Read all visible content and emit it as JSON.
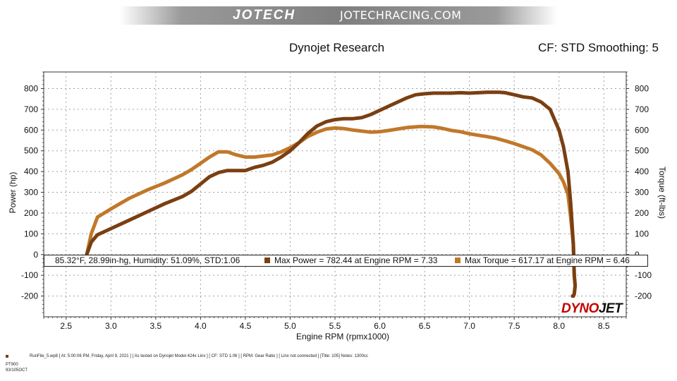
{
  "header": {
    "logo_text": "JOTECH",
    "site_text": "JOTECHRACING.COM",
    "title_left": "Dynojet Research",
    "title_right": "CF: STD Smoothing: 5"
  },
  "legend": {
    "conditions": "85.32°F, 28.99in-hg, Humidity: 51.09%, STD:1.06",
    "max_power": "Max Power = 782.44 at Engine RPM = 7.33",
    "max_torque": "Max Torque = 617.17 at Engine RPM = 6.46"
  },
  "footer": {
    "line1": "RunFile_5.wp8 [ At: 5:00:06 PM, Friday, April 9, 2021 ] [ As tested on Dynojet Model 424x Linx ] [ CF: STD 1.06 ] [ RPM: Gear Ratio ] [ Linx not connected ] [Title: 105]   Notes: 1300cc",
    "line2": "PT900",
    "line3": "93/105OCT"
  },
  "brand": {
    "part1": "DYNO",
    "part2": "JET"
  },
  "colors": {
    "power": "#7a3f12",
    "torque": "#c0782a",
    "grid": "#a0a0a0"
  },
  "chart_data": {
    "type": "line",
    "xlabel": "Engine RPM (rpmx1000)",
    "ylabel": "Power (hp)",
    "ylabel_right": "Torque (ft-lbs)",
    "xlim": [
      2.25,
      8.75
    ],
    "ylim": [
      -300,
      880
    ],
    "xticks": [
      "2.5",
      "3.0",
      "3.5",
      "4.0",
      "4.5",
      "5.0",
      "5.5",
      "6.0",
      "6.5",
      "7.0",
      "7.5",
      "8.0",
      "8.5"
    ],
    "yticks": [
      "800",
      "700",
      "600",
      "500",
      "400",
      "300",
      "200",
      "100",
      "0",
      "-100",
      "-200"
    ],
    "grid": true,
    "series": [
      {
        "name": "Power",
        "x": [
          2.73,
          2.78,
          2.85,
          3.0,
          3.2,
          3.4,
          3.6,
          3.8,
          3.9,
          4.0,
          4.1,
          4.2,
          4.3,
          4.4,
          4.5,
          4.6,
          4.7,
          4.8,
          4.9,
          5.0,
          5.1,
          5.2,
          5.3,
          5.4,
          5.5,
          5.6,
          5.7,
          5.8,
          5.9,
          6.0,
          6.1,
          6.2,
          6.3,
          6.4,
          6.5,
          6.6,
          6.7,
          6.8,
          6.9,
          7.0,
          7.1,
          7.2,
          7.33,
          7.4,
          7.5,
          7.6,
          7.7,
          7.8,
          7.9,
          8.0,
          8.05,
          8.1,
          8.13,
          8.16,
          8.17,
          8.18,
          8.17,
          8.16,
          8.15
        ],
        "y": [
          0,
          60,
          95,
          125,
          165,
          205,
          245,
          280,
          305,
          340,
          375,
          395,
          405,
          405,
          405,
          420,
          430,
          445,
          470,
          500,
          540,
          585,
          620,
          640,
          650,
          655,
          655,
          660,
          675,
          695,
          715,
          735,
          755,
          770,
          775,
          778,
          778,
          778,
          780,
          778,
          780,
          782,
          782,
          780,
          770,
          760,
          755,
          735,
          700,
          600,
          520,
          400,
          250,
          50,
          -100,
          -150,
          -190,
          -200,
          -200
        ]
      },
      {
        "name": "Torque",
        "x": [
          2.73,
          2.78,
          2.85,
          3.0,
          3.2,
          3.4,
          3.6,
          3.8,
          3.9,
          4.0,
          4.1,
          4.2,
          4.3,
          4.4,
          4.5,
          4.6,
          4.7,
          4.8,
          4.9,
          5.0,
          5.1,
          5.2,
          5.3,
          5.4,
          5.5,
          5.6,
          5.7,
          5.8,
          5.9,
          6.0,
          6.1,
          6.2,
          6.3,
          6.46,
          6.6,
          6.7,
          6.8,
          6.9,
          7.0,
          7.1,
          7.2,
          7.3,
          7.4,
          7.5,
          7.6,
          7.7,
          7.8,
          7.9,
          8.0,
          8.05,
          8.1,
          8.13,
          8.16,
          8.17,
          8.18,
          8.17,
          8.16,
          8.15
        ],
        "y": [
          0,
          100,
          180,
          220,
          270,
          310,
          345,
          385,
          410,
          440,
          470,
          495,
          495,
          480,
          470,
          470,
          475,
          480,
          495,
          515,
          540,
          570,
          590,
          605,
          610,
          607,
          600,
          595,
          590,
          592,
          598,
          605,
          612,
          617,
          615,
          608,
          598,
          592,
          582,
          575,
          568,
          560,
          548,
          535,
          520,
          505,
          480,
          440,
          390,
          350,
          290,
          180,
          50,
          -100,
          -150,
          -190,
          -200,
          -200
        ]
      }
    ]
  }
}
